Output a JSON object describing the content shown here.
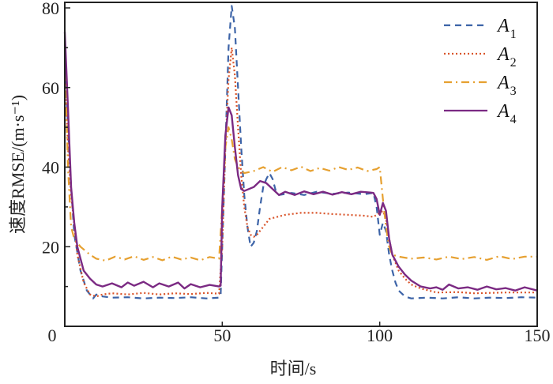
{
  "chart_data": {
    "type": "line",
    "title": "",
    "xlabel": "时间/s",
    "ylabel": "速度RMSE/(m·s⁻¹)",
    "xlim": [
      0,
      150
    ],
    "ylim": [
      0,
      81.5
    ],
    "xticks": [
      0,
      50,
      100,
      150
    ],
    "yticks": [
      0,
      20,
      40,
      60,
      80
    ],
    "xtick_labels": [
      "0",
      "50",
      "100",
      "150"
    ],
    "ytick_labels": [
      "0",
      "20",
      "40",
      "60",
      "80"
    ],
    "grid": false,
    "legend_position": "top-right",
    "series": [
      {
        "name": "A",
        "sub": "1",
        "color": "#3d64a8",
        "dash": "8,6",
        "points": [
          [
            0,
            70
          ],
          [
            1,
            50
          ],
          [
            2,
            35
          ],
          [
            3,
            23
          ],
          [
            5,
            14
          ],
          [
            7,
            9
          ],
          [
            9,
            7
          ],
          [
            10,
            8
          ],
          [
            12,
            7.5
          ],
          [
            15,
            7.2
          ],
          [
            20,
            7.3
          ],
          [
            25,
            7
          ],
          [
            30,
            7.2
          ],
          [
            35,
            7.1
          ],
          [
            40,
            7.3
          ],
          [
            45,
            7
          ],
          [
            49,
            7.2
          ],
          [
            49.5,
            7.8
          ],
          [
            50,
            20
          ],
          [
            51,
            45
          ],
          [
            52,
            70
          ],
          [
            53,
            80.5
          ],
          [
            54,
            75
          ],
          [
            55,
            60
          ],
          [
            56,
            45
          ],
          [
            57,
            33
          ],
          [
            58,
            25
          ],
          [
            59,
            20
          ],
          [
            60,
            21
          ],
          [
            61,
            24
          ],
          [
            62,
            30
          ],
          [
            63,
            35
          ],
          [
            64,
            37
          ],
          [
            65,
            38.5
          ],
          [
            66,
            37
          ],
          [
            67,
            34
          ],
          [
            68,
            33
          ],
          [
            72,
            33.5
          ],
          [
            76,
            33
          ],
          [
            80,
            33.8
          ],
          [
            85,
            33.3
          ],
          [
            90,
            33.6
          ],
          [
            95,
            33.2
          ],
          [
            98,
            33.5
          ],
          [
            99,
            30
          ],
          [
            100,
            23
          ],
          [
            101,
            26
          ],
          [
            102,
            24
          ],
          [
            103,
            18
          ],
          [
            104,
            14
          ],
          [
            105,
            11
          ],
          [
            106,
            9
          ],
          [
            108,
            7.5
          ],
          [
            110,
            7
          ],
          [
            115,
            7.2
          ],
          [
            120,
            7
          ],
          [
            125,
            7.3
          ],
          [
            130,
            7
          ],
          [
            135,
            7.2
          ],
          [
            140,
            7.1
          ],
          [
            145,
            7.3
          ],
          [
            150,
            7.2
          ]
        ]
      },
      {
        "name": "A",
        "sub": "2",
        "color": "#d9542a",
        "dash": "2,3",
        "points": [
          [
            0,
            65
          ],
          [
            1,
            45
          ],
          [
            2,
            33
          ],
          [
            4,
            18
          ],
          [
            6,
            11
          ],
          [
            8,
            8
          ],
          [
            10,
            7.5
          ],
          [
            12,
            8
          ],
          [
            15,
            8.3
          ],
          [
            20,
            8
          ],
          [
            25,
            8.4
          ],
          [
            30,
            8
          ],
          [
            35,
            8.3
          ],
          [
            40,
            8.1
          ],
          [
            45,
            8.4
          ],
          [
            49,
            8.2
          ],
          [
            50,
            20
          ],
          [
            51,
            45
          ],
          [
            52,
            62
          ],
          [
            53,
            70
          ],
          [
            54,
            63
          ],
          [
            55,
            50
          ],
          [
            56,
            38
          ],
          [
            57,
            30
          ],
          [
            58,
            25
          ],
          [
            59,
            23
          ],
          [
            60,
            22.5
          ],
          [
            61,
            23
          ],
          [
            62,
            24
          ],
          [
            63,
            25
          ],
          [
            65,
            27
          ],
          [
            70,
            28
          ],
          [
            75,
            28.5
          ],
          [
            80,
            28.5
          ],
          [
            85,
            28.2
          ],
          [
            90,
            28
          ],
          [
            95,
            27.8
          ],
          [
            98,
            27.5
          ],
          [
            100,
            28.5
          ],
          [
            101,
            29
          ],
          [
            102,
            27
          ],
          [
            103,
            22
          ],
          [
            104,
            18
          ],
          [
            106,
            14
          ],
          [
            108,
            12
          ],
          [
            110,
            10.5
          ],
          [
            113,
            9.5
          ],
          [
            118,
            8.5
          ],
          [
            125,
            8.6
          ],
          [
            130,
            8.3
          ],
          [
            140,
            8.5
          ],
          [
            150,
            8.5
          ]
        ]
      },
      {
        "name": "A",
        "sub": "3",
        "color": "#e6a030",
        "dash": "10,5,2,5",
        "points": [
          [
            0,
            68
          ],
          [
            1,
            40
          ],
          [
            2,
            25
          ],
          [
            3,
            22
          ],
          [
            5,
            20
          ],
          [
            8,
            18
          ],
          [
            10,
            17
          ],
          [
            13,
            16.5
          ],
          [
            16,
            17.5
          ],
          [
            19,
            16.8
          ],
          [
            22,
            17.6
          ],
          [
            25,
            16.7
          ],
          [
            28,
            17.4
          ],
          [
            31,
            16.6
          ],
          [
            34,
            17.5
          ],
          [
            37,
            16.8
          ],
          [
            40,
            17.3
          ],
          [
            43,
            16.6
          ],
          [
            46,
            17.4
          ],
          [
            49,
            17
          ],
          [
            50,
            30
          ],
          [
            51,
            45
          ],
          [
            52,
            50
          ],
          [
            53,
            47
          ],
          [
            54,
            42
          ],
          [
            55,
            40
          ],
          [
            57,
            38.5
          ],
          [
            60,
            39
          ],
          [
            63,
            40
          ],
          [
            66,
            38.8
          ],
          [
            69,
            40
          ],
          [
            72,
            39.2
          ],
          [
            75,
            40.1
          ],
          [
            78,
            39
          ],
          [
            81,
            39.8
          ],
          [
            84,
            39.1
          ],
          [
            87,
            40
          ],
          [
            90,
            39.3
          ],
          [
            93,
            39.9
          ],
          [
            96,
            39
          ],
          [
            99,
            39.5
          ],
          [
            100,
            40
          ],
          [
            101,
            32
          ],
          [
            102,
            25
          ],
          [
            103,
            20
          ],
          [
            104,
            18
          ],
          [
            106,
            17.5
          ],
          [
            110,
            17
          ],
          [
            114,
            17.3
          ],
          [
            118,
            16.8
          ],
          [
            122,
            17.5
          ],
          [
            126,
            16.9
          ],
          [
            130,
            17.4
          ],
          [
            134,
            16.7
          ],
          [
            138,
            17.6
          ],
          [
            142,
            16.9
          ],
          [
            146,
            17.5
          ],
          [
            150,
            17.5
          ]
        ]
      },
      {
        "name": "A",
        "sub": "4",
        "color": "#7b2a83",
        "dash": "",
        "points": [
          [
            0,
            74
          ],
          [
            1,
            55
          ],
          [
            2,
            35
          ],
          [
            3,
            26
          ],
          [
            4,
            20
          ],
          [
            5,
            17
          ],
          [
            6,
            14
          ],
          [
            8,
            12
          ],
          [
            10,
            10.5
          ],
          [
            12,
            10
          ],
          [
            15,
            10.8
          ],
          [
            18,
            9.8
          ],
          [
            20,
            11
          ],
          [
            22,
            10.2
          ],
          [
            25,
            11.2
          ],
          [
            28,
            9.8
          ],
          [
            30,
            10.8
          ],
          [
            33,
            10
          ],
          [
            36,
            11
          ],
          [
            38,
            9.5
          ],
          [
            40,
            10.6
          ],
          [
            43,
            9.8
          ],
          [
            46,
            10.4
          ],
          [
            49,
            10
          ],
          [
            49.5,
            10.2
          ],
          [
            50,
            30
          ],
          [
            51,
            48
          ],
          [
            52,
            55
          ],
          [
            53,
            53
          ],
          [
            54,
            45
          ],
          [
            55,
            38
          ],
          [
            56,
            34.5
          ],
          [
            57,
            34
          ],
          [
            60,
            35
          ],
          [
            62,
            36.5
          ],
          [
            64,
            36
          ],
          [
            66,
            34.5
          ],
          [
            68,
            33
          ],
          [
            70,
            33.8
          ],
          [
            73,
            33
          ],
          [
            76,
            33.9
          ],
          [
            79,
            33.2
          ],
          [
            82,
            33.8
          ],
          [
            85,
            33.1
          ],
          [
            88,
            33.7
          ],
          [
            91,
            33.2
          ],
          [
            94,
            33.8
          ],
          [
            97,
            33.6
          ],
          [
            98,
            33.5
          ],
          [
            99,
            32
          ],
          [
            100,
            28
          ],
          [
            101,
            31
          ],
          [
            102,
            29
          ],
          [
            103,
            22
          ],
          [
            104,
            18
          ],
          [
            106,
            15
          ],
          [
            108,
            13
          ],
          [
            110,
            11.5
          ],
          [
            113,
            10
          ],
          [
            116,
            9.5
          ],
          [
            118,
            9.8
          ],
          [
            120,
            9.2
          ],
          [
            122,
            10.5
          ],
          [
            125,
            9.5
          ],
          [
            128,
            9.8
          ],
          [
            131,
            9.2
          ],
          [
            134,
            10
          ],
          [
            137,
            9.3
          ],
          [
            140,
            9.6
          ],
          [
            143,
            9
          ],
          [
            146,
            9.8
          ],
          [
            150,
            9
          ]
        ]
      }
    ]
  }
}
